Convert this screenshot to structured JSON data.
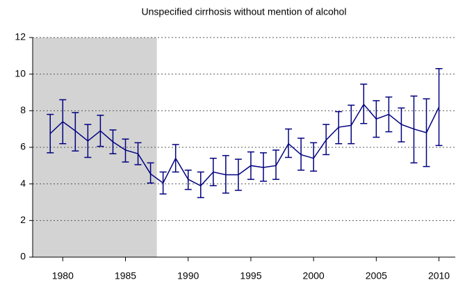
{
  "chart_data": {
    "type": "line",
    "title": "Unspecified cirrhosis without mention of alcohol",
    "x": [
      1979,
      1980,
      1981,
      1982,
      1983,
      1984,
      1985,
      1986,
      1987,
      1988,
      1989,
      1990,
      1991,
      1992,
      1993,
      1994,
      1995,
      1996,
      1997,
      1998,
      1999,
      2000,
      2001,
      2002,
      2003,
      2004,
      2005,
      2006,
      2007,
      2008,
      2009,
      2010
    ],
    "series": [
      {
        "color": "#000080",
        "values": [
          6.75,
          7.4,
          6.9,
          6.35,
          6.9,
          6.3,
          5.85,
          5.65,
          4.55,
          4.05,
          5.4,
          4.25,
          3.9,
          4.65,
          4.5,
          4.5,
          5.0,
          4.9,
          5.0,
          6.2,
          5.6,
          5.4,
          6.4,
          7.1,
          7.2,
          8.35,
          7.55,
          7.8,
          7.25,
          7.0,
          6.8,
          8.2
        ],
        "lower": [
          5.7,
          6.2,
          5.8,
          5.45,
          6.05,
          5.65,
          5.2,
          5.05,
          4.05,
          3.45,
          4.65,
          3.7,
          3.25,
          3.9,
          3.5,
          3.65,
          4.25,
          4.15,
          4.25,
          5.45,
          4.75,
          4.7,
          5.6,
          6.2,
          6.2,
          7.3,
          6.55,
          6.85,
          6.3,
          5.15,
          4.95,
          6.1
        ],
        "upper": [
          7.8,
          8.6,
          7.9,
          7.25,
          7.75,
          6.95,
          6.45,
          6.25,
          5.15,
          4.65,
          6.15,
          4.75,
          4.65,
          5.4,
          5.55,
          5.35,
          5.75,
          5.7,
          5.85,
          7.0,
          6.5,
          6.25,
          7.25,
          7.95,
          8.3,
          9.45,
          8.55,
          8.75,
          8.15,
          8.8,
          8.65,
          10.3
        ]
      }
    ],
    "xlim": [
      1977.6,
      2011.3
    ],
    "xticks": [
      1980,
      1985,
      1990,
      1995,
      2000,
      2005,
      2010
    ],
    "ylim": [
      0,
      12
    ],
    "yticks": [
      0,
      2,
      4,
      6,
      8,
      10,
      12
    ],
    "grid": true,
    "shaded_x": [
      1977.6,
      1987.5
    ],
    "shade_color": "#d3d3d3"
  }
}
